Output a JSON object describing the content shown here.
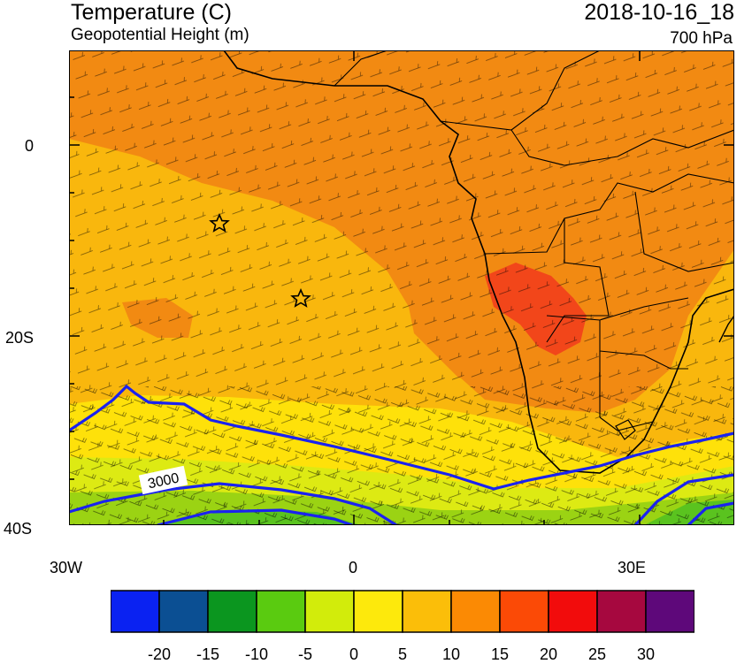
{
  "header": {
    "title": "Temperature (C)",
    "subtitle": "Geopotential Height (m)",
    "valid_time": "2018-10-16_18",
    "level": "700 hPa"
  },
  "map": {
    "projection": "cylindrical equidistant",
    "lon_range": [
      -30,
      40
    ],
    "lat_range": [
      -40,
      10
    ],
    "lat_labels": [
      "0",
      "20S",
      "40S"
    ],
    "lon_labels": [
      "30W",
      "0",
      "30E"
    ],
    "contour_label": "3000",
    "contour_color": "#1a22f0",
    "boundary_color": "#000000",
    "field_colors": {
      "above_20": "#f2461a",
      "15_to_20": "#f28a12",
      "10_to_15": "#f9b70d",
      "5_to_10": "#fee10a",
      "0_to_5": "#ddea13",
      "-5_to_0": "#9bd313",
      "-10_to_-5": "#5ac31f"
    },
    "markers": [
      {
        "type": "star",
        "lon": -14.5,
        "lat": -8
      },
      {
        "type": "star",
        "lon": -5.6,
        "lat": -15.9
      }
    ]
  },
  "colorbar": {
    "colors": [
      "#0a22f2",
      "#0b4f93",
      "#0b961f",
      "#5acb10",
      "#d2ec0b",
      "#fde90c",
      "#fbbe09",
      "#fb8a04",
      "#fb4a06",
      "#f20c0c",
      "#a6083f",
      "#5e087a"
    ],
    "labels": [
      "-20",
      "-15",
      "-10",
      "-5",
      "0",
      "5",
      "10",
      "15",
      "20",
      "25",
      "30"
    ]
  }
}
